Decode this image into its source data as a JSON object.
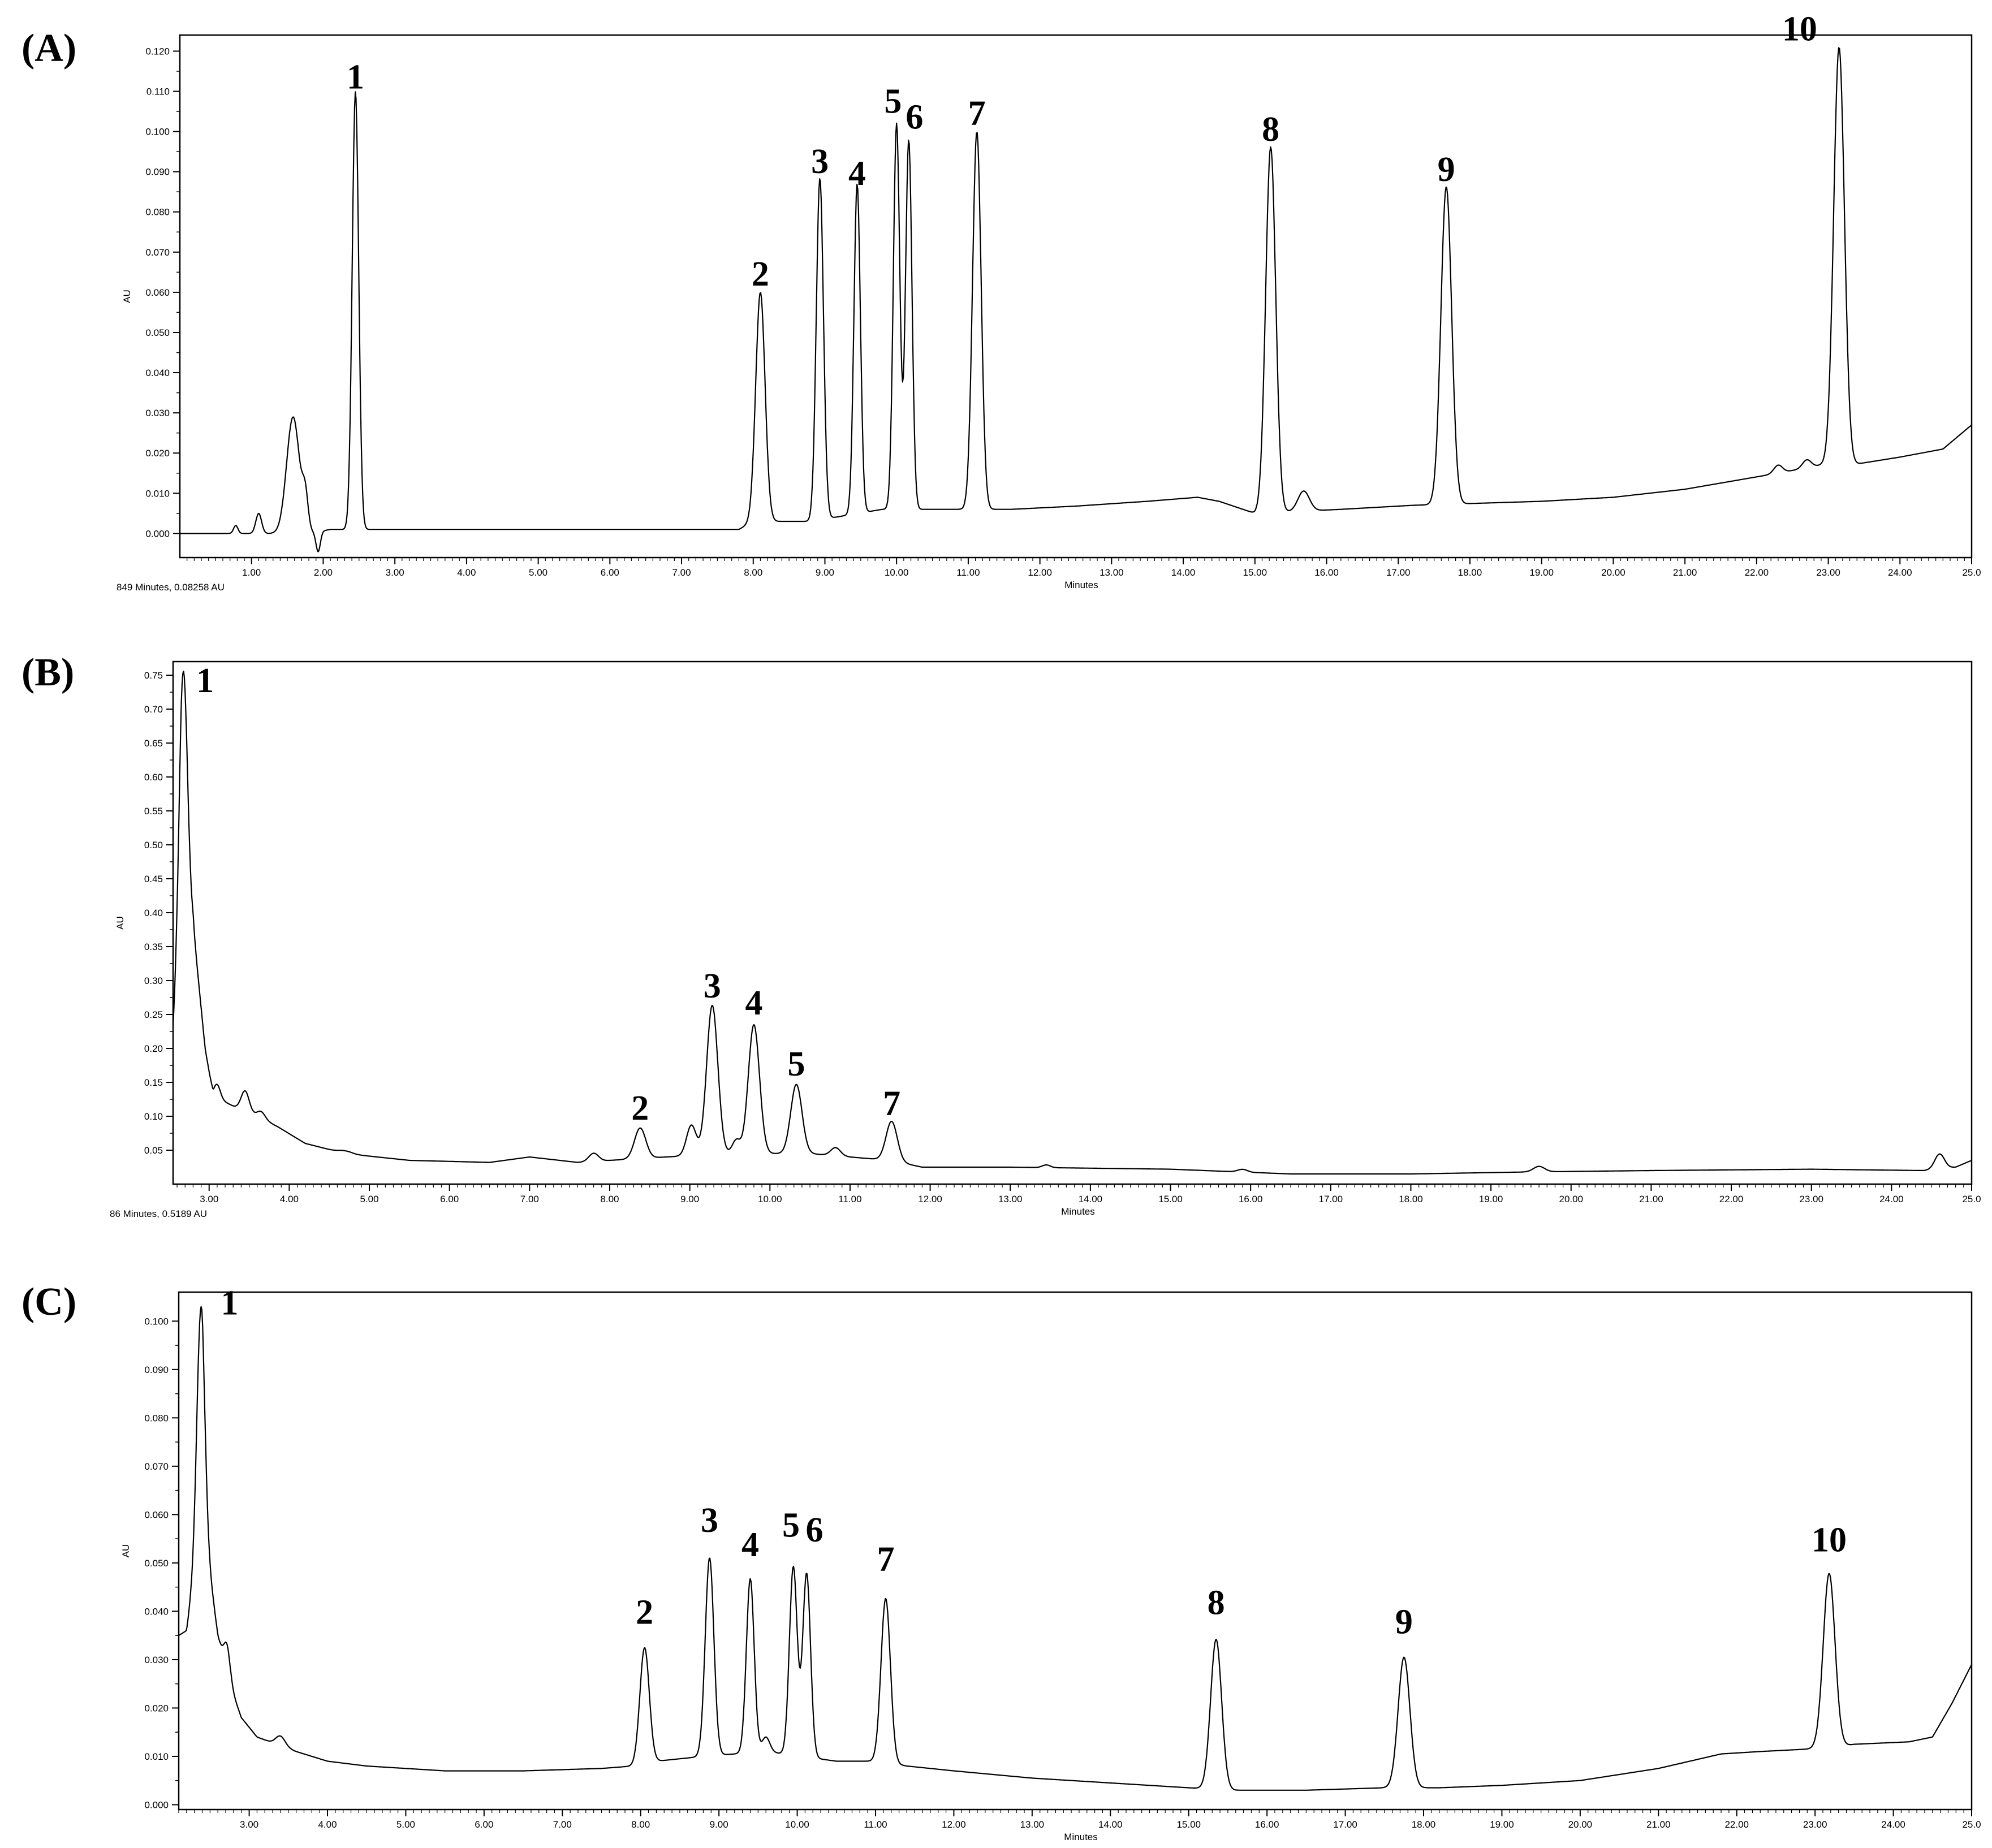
{
  "chart_data": [
    {
      "type": "line",
      "panel_label": "(A)",
      "xlabel": "Minutes",
      "ylabel": "AU",
      "status_text": "849 Minutes, 0.08258 AU",
      "xlim": [
        0,
        25
      ],
      "ylim": [
        -0.006,
        0.124
      ],
      "x_ticks": [
        1.0,
        2.0,
        3.0,
        4.0,
        5.0,
        6.0,
        7.0,
        8.0,
        9.0,
        10.0,
        11.0,
        12.0,
        13.0,
        14.0,
        15.0,
        16.0,
        17.0,
        18.0,
        19.0,
        20.0,
        21.0,
        22.0,
        23.0,
        24.0,
        25.0
      ],
      "x_tick_labels": [
        "1.00",
        "2.00",
        "3.00",
        "4.00",
        "5.00",
        "6.00",
        "7.00",
        "8.00",
        "9.00",
        "10.00",
        "11.00",
        "12.00",
        "13.00",
        "14.00",
        "15.00",
        "16.00",
        "17.00",
        "18.00",
        "19.00",
        "20.00",
        "21.00",
        "22.00",
        "23.00",
        "24.00",
        "25.0"
      ],
      "y_ticks": [
        0.0,
        0.01,
        0.02,
        0.03,
        0.04,
        0.05,
        0.06,
        0.07,
        0.08,
        0.09,
        0.1,
        0.11,
        0.12
      ],
      "y_tick_labels": [
        "0.000",
        "0.010",
        "0.020",
        "0.030",
        "0.040",
        "0.050",
        "0.060",
        "0.070",
        "0.080",
        "0.090",
        "0.100",
        "0.110",
        "0.120"
      ],
      "baseline": [
        [
          0,
          0.0
        ],
        [
          0.7,
          0.0
        ],
        [
          1.8,
          0.0
        ],
        [
          2.1,
          0.001
        ],
        [
          3.5,
          0.001
        ],
        [
          7.8,
          0.001
        ],
        [
          8.0,
          0.003
        ],
        [
          8.8,
          0.003
        ],
        [
          9.8,
          0.006
        ],
        [
          10.8,
          0.006
        ],
        [
          11.6,
          0.006
        ],
        [
          12.5,
          0.0068
        ],
        [
          13.5,
          0.008
        ],
        [
          14.2,
          0.009
        ],
        [
          14.5,
          0.008
        ],
        [
          15.0,
          0.005
        ],
        [
          16.2,
          0.006
        ],
        [
          17.2,
          0.007
        ],
        [
          19.0,
          0.008
        ],
        [
          20.0,
          0.009
        ],
        [
          21.0,
          0.011
        ],
        [
          22.3,
          0.015
        ],
        [
          22.9,
          0.017
        ],
        [
          23.3,
          0.017
        ],
        [
          24.0,
          0.019
        ],
        [
          24.6,
          0.021
        ],
        [
          25.0,
          0.027
        ]
      ],
      "peaks": [
        {
          "x": 0.78,
          "y": 0.002,
          "w": 0.03
        },
        {
          "x": 1.1,
          "y": 0.005,
          "w": 0.04
        },
        {
          "x": 1.58,
          "y": 0.029,
          "w": 0.09
        },
        {
          "x": 1.75,
          "y": 0.008,
          "w": 0.04
        },
        {
          "x": 1.93,
          "y": -0.005,
          "w": 0.03
        },
        {
          "x": 2.45,
          "y": 0.109,
          "w": 0.045
        },
        {
          "x": 8.1,
          "y": 0.057,
          "w": 0.065
        },
        {
          "x": 8.93,
          "y": 0.085,
          "w": 0.05
        },
        {
          "x": 9.45,
          "y": 0.082,
          "w": 0.045
        },
        {
          "x": 10.0,
          "y": 0.096,
          "w": 0.045
        },
        {
          "x": 10.17,
          "y": 0.092,
          "w": 0.045
        },
        {
          "x": 11.12,
          "y": 0.094,
          "w": 0.06
        },
        {
          "x": 15.22,
          "y": 0.091,
          "w": 0.07
        },
        {
          "x": 15.68,
          "y": 0.005,
          "w": 0.08
        },
        {
          "x": 17.67,
          "y": 0.079,
          "w": 0.075
        },
        {
          "x": 22.3,
          "y": 0.002,
          "w": 0.06
        },
        {
          "x": 22.7,
          "y": 0.002,
          "w": 0.06
        },
        {
          "x": 23.15,
          "y": 0.104,
          "w": 0.075
        }
      ],
      "labels": [
        {
          "text": "1",
          "x": 2.45,
          "y": 0.109
        },
        {
          "text": "2",
          "x": 8.1,
          "y": 0.06
        },
        {
          "text": "3",
          "x": 8.93,
          "y": 0.088
        },
        {
          "text": "4",
          "x": 9.45,
          "y": 0.085
        },
        {
          "text": "5",
          "x": 9.95,
          "y": 0.103
        },
        {
          "text": "6",
          "x": 10.25,
          "y": 0.099
        },
        {
          "text": "7",
          "x": 11.12,
          "y": 0.1
        },
        {
          "text": "8",
          "x": 15.22,
          "y": 0.096
        },
        {
          "text": "9",
          "x": 17.67,
          "y": 0.086
        },
        {
          "text": "10",
          "x": 22.6,
          "y": 0.121
        }
      ]
    },
    {
      "type": "line",
      "panel_label": "(B)",
      "xlabel": "Minutes",
      "ylabel": "AU",
      "status_text": "86 Minutes, 0.5189 AU",
      "xlim": [
        2.55,
        25.0
      ],
      "ylim": [
        0.0,
        0.77
      ],
      "x_ticks": [
        3.0,
        4.0,
        5.0,
        6.0,
        7.0,
        8.0,
        9.0,
        10.0,
        11.0,
        12.0,
        13.0,
        14.0,
        15.0,
        16.0,
        17.0,
        18.0,
        19.0,
        20.0,
        21.0,
        22.0,
        23.0,
        24.0,
        25.0
      ],
      "x_tick_labels": [
        "3.00",
        "4.00",
        "5.00",
        "6.00",
        "7.00",
        "8.00",
        "9.00",
        "10.00",
        "11.00",
        "12.00",
        "13.00",
        "14.00",
        "15.00",
        "16.00",
        "17.00",
        "18.00",
        "19.00",
        "20.00",
        "21.00",
        "22.00",
        "23.00",
        "24.00",
        "25.0"
      ],
      "y_ticks": [
        0.05,
        0.1,
        0.15,
        0.2,
        0.25,
        0.3,
        0.35,
        0.4,
        0.45,
        0.5,
        0.55,
        0.6,
        0.65,
        0.7,
        0.75
      ],
      "y_tick_labels": [
        "0.05",
        "0.10",
        "0.15",
        "0.20",
        "0.25",
        "0.30",
        "0.35",
        "0.40",
        "0.45",
        "0.50",
        "0.55",
        "0.60",
        "0.65",
        "0.70",
        "0.75"
      ],
      "baseline": [
        [
          2.55,
          0.22
        ],
        [
          2.65,
          0.4
        ],
        [
          2.8,
          0.38
        ],
        [
          2.95,
          0.2
        ],
        [
          3.05,
          0.13
        ],
        [
          3.3,
          0.115
        ],
        [
          3.6,
          0.1
        ],
        [
          3.85,
          0.085
        ],
        [
          4.2,
          0.06
        ],
        [
          4.7,
          0.045
        ],
        [
          5.5,
          0.035
        ],
        [
          6.5,
          0.032
        ],
        [
          7.0,
          0.04
        ],
        [
          7.6,
          0.032
        ],
        [
          8.0,
          0.035
        ],
        [
          8.7,
          0.04
        ],
        [
          9.5,
          0.045
        ],
        [
          10.5,
          0.045
        ],
        [
          11.5,
          0.035
        ],
        [
          11.9,
          0.025
        ],
        [
          13.0,
          0.025
        ],
        [
          15.0,
          0.022
        ],
        [
          16.5,
          0.015
        ],
        [
          18.0,
          0.015
        ],
        [
          19.5,
          0.018
        ],
        [
          21.0,
          0.02
        ],
        [
          23.0,
          0.022
        ],
        [
          24.4,
          0.02
        ],
        [
          24.8,
          0.025
        ],
        [
          25.0,
          0.035
        ]
      ],
      "peaks": [
        {
          "x": 2.68,
          "y": 0.36,
          "w": 0.05
        },
        {
          "x": 3.1,
          "y": 0.02,
          "w": 0.04
        },
        {
          "x": 3.45,
          "y": 0.03,
          "w": 0.05
        },
        {
          "x": 3.65,
          "y": 0.01,
          "w": 0.05
        },
        {
          "x": 4.7,
          "y": 0.004,
          "w": 0.08
        },
        {
          "x": 7.8,
          "y": 0.012,
          "w": 0.06
        },
        {
          "x": 8.38,
          "y": 0.045,
          "w": 0.07
        },
        {
          "x": 9.02,
          "y": 0.045,
          "w": 0.06
        },
        {
          "x": 9.28,
          "y": 0.22,
          "w": 0.07
        },
        {
          "x": 9.58,
          "y": 0.02,
          "w": 0.05
        },
        {
          "x": 9.8,
          "y": 0.19,
          "w": 0.07
        },
        {
          "x": 10.33,
          "y": 0.102,
          "w": 0.07
        },
        {
          "x": 10.82,
          "y": 0.012,
          "w": 0.06
        },
        {
          "x": 11.52,
          "y": 0.058,
          "w": 0.07
        },
        {
          "x": 13.45,
          "y": 0.004,
          "w": 0.05
        },
        {
          "x": 15.9,
          "y": 0.004,
          "w": 0.06
        },
        {
          "x": 19.6,
          "y": 0.008,
          "w": 0.07
        },
        {
          "x": 24.6,
          "y": 0.022,
          "w": 0.06
        }
      ],
      "labels": [
        {
          "text": "1",
          "x": 2.95,
          "y": 0.715
        },
        {
          "text": "2",
          "x": 8.38,
          "y": 0.085
        },
        {
          "text": "3",
          "x": 9.28,
          "y": 0.265
        },
        {
          "text": "4",
          "x": 9.8,
          "y": 0.24
        },
        {
          "text": "5",
          "x": 10.33,
          "y": 0.15
        },
        {
          "text": "7",
          "x": 11.52,
          "y": 0.092
        }
      ]
    },
    {
      "type": "line",
      "panel_label": "(C)",
      "xlabel": "Minutes",
      "ylabel": "AU",
      "status_text": "",
      "xlim": [
        2.1,
        25.0
      ],
      "ylim": [
        -0.001,
        0.106
      ],
      "x_ticks": [
        3.0,
        4.0,
        5.0,
        6.0,
        7.0,
        8.0,
        9.0,
        10.0,
        11.0,
        12.0,
        13.0,
        14.0,
        15.0,
        16.0,
        17.0,
        18.0,
        19.0,
        20.0,
        21.0,
        22.0,
        23.0,
        24.0,
        25.0
      ],
      "x_tick_labels": [
        "3.00",
        "4.00",
        "5.00",
        "6.00",
        "7.00",
        "8.00",
        "9.00",
        "10.00",
        "11.00",
        "12.00",
        "13.00",
        "14.00",
        "15.00",
        "16.00",
        "17.00",
        "18.00",
        "19.00",
        "20.00",
        "21.00",
        "22.00",
        "23.00",
        "24.00",
        "25.0"
      ],
      "y_ticks": [
        0.0,
        0.01,
        0.02,
        0.03,
        0.04,
        0.05,
        0.06,
        0.07,
        0.08,
        0.09,
        0.1
      ],
      "y_tick_labels": [
        "0.000",
        "0.010",
        "0.020",
        "0.030",
        "0.040",
        "0.050",
        "0.060",
        "0.070",
        "0.080",
        "0.090",
        "0.100"
      ],
      "baseline": [
        [
          2.1,
          0.035
        ],
        [
          2.2,
          0.036
        ],
        [
          2.4,
          0.06
        ],
        [
          2.6,
          0.035
        ],
        [
          2.75,
          0.025
        ],
        [
          2.9,
          0.018
        ],
        [
          3.1,
          0.014
        ],
        [
          3.6,
          0.011
        ],
        [
          4.0,
          0.009
        ],
        [
          4.5,
          0.008
        ],
        [
          5.5,
          0.007
        ],
        [
          6.5,
          0.007
        ],
        [
          7.5,
          0.0075
        ],
        [
          7.9,
          0.008
        ],
        [
          8.2,
          0.009
        ],
        [
          8.8,
          0.01
        ],
        [
          9.6,
          0.011
        ],
        [
          10.5,
          0.009
        ],
        [
          11.0,
          0.009
        ],
        [
          11.4,
          0.008
        ],
        [
          12.0,
          0.007
        ],
        [
          13.0,
          0.0055
        ],
        [
          14.0,
          0.0045
        ],
        [
          15.0,
          0.0035
        ],
        [
          15.6,
          0.003
        ],
        [
          16.5,
          0.003
        ],
        [
          17.5,
          0.0035
        ],
        [
          18.2,
          0.0035
        ],
        [
          19.0,
          0.004
        ],
        [
          20.0,
          0.005
        ],
        [
          21.0,
          0.0075
        ],
        [
          21.8,
          0.0105
        ],
        [
          22.3,
          0.011
        ],
        [
          22.9,
          0.0115
        ],
        [
          23.3,
          0.012
        ],
        [
          23.5,
          0.0125
        ],
        [
          24.2,
          0.013
        ],
        [
          24.5,
          0.014
        ],
        [
          24.75,
          0.021
        ],
        [
          25.0,
          0.029
        ]
      ],
      "peaks": [
        {
          "x": 2.38,
          "y": 0.045,
          "w": 0.05
        },
        {
          "x": 2.72,
          "y": 0.006,
          "w": 0.04
        },
        {
          "x": 3.4,
          "y": 0.002,
          "w": 0.06
        },
        {
          "x": 8.05,
          "y": 0.024,
          "w": 0.06
        },
        {
          "x": 8.88,
          "y": 0.041,
          "w": 0.055
        },
        {
          "x": 9.4,
          "y": 0.036,
          "w": 0.05
        },
        {
          "x": 9.6,
          "y": 0.003,
          "w": 0.05
        },
        {
          "x": 9.95,
          "y": 0.039,
          "w": 0.05
        },
        {
          "x": 10.12,
          "y": 0.038,
          "w": 0.05
        },
        {
          "x": 11.13,
          "y": 0.034,
          "w": 0.06
        },
        {
          "x": 15.35,
          "y": 0.031,
          "w": 0.07
        },
        {
          "x": 17.75,
          "y": 0.027,
          "w": 0.075
        },
        {
          "x": 23.18,
          "y": 0.036,
          "w": 0.075
        }
      ],
      "labels": [
        {
          "text": "1",
          "x": 2.75,
          "y": 0.1
        },
        {
          "text": "2",
          "x": 8.05,
          "y": 0.036
        },
        {
          "text": "3",
          "x": 8.88,
          "y": 0.055
        },
        {
          "text": "4",
          "x": 9.4,
          "y": 0.05
        },
        {
          "text": "5",
          "x": 9.92,
          "y": 0.054
        },
        {
          "text": "6",
          "x": 10.22,
          "y": 0.053
        },
        {
          "text": "7",
          "x": 11.13,
          "y": 0.047
        },
        {
          "text": "8",
          "x": 15.35,
          "y": 0.038
        },
        {
          "text": "9",
          "x": 17.75,
          "y": 0.034
        },
        {
          "text": "10",
          "x": 23.18,
          "y": 0.051
        }
      ]
    }
  ]
}
